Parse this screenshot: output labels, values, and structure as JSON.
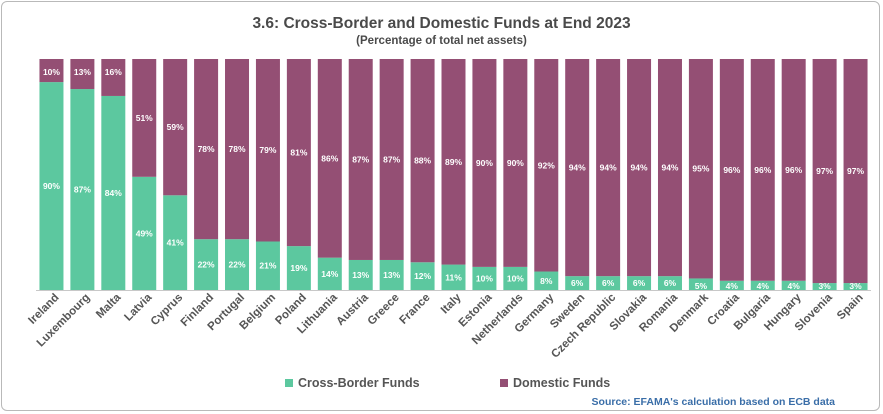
{
  "chart_data": {
    "type": "bar",
    "stacked": true,
    "title": "3.6: Cross-Border and Domestic Funds at End 2023",
    "subtitle": "(Percentage of total net assets)",
    "categories": [
      "Ireland",
      "Luxembourg",
      "Malta",
      "Latvia",
      "Cyprus",
      "Finland",
      "Portugal",
      "Belgium",
      "Poland",
      "Lithuania",
      "Austria",
      "Greece",
      "France",
      "Italy",
      "Estonia",
      "Netherlands",
      "Germany",
      "Sweden",
      "Czech Republic",
      "Slovakia",
      "Romania",
      "Denmark",
      "Croatia",
      "Bulgaria",
      "Hungary",
      "Slovenia",
      "Spain"
    ],
    "series": [
      {
        "name": "Cross-Border Funds",
        "color": "#5cc89f",
        "values": [
          90,
          87,
          84,
          49,
          41,
          22,
          22,
          21,
          19,
          14,
          13,
          13,
          12,
          11,
          10,
          10,
          8,
          6,
          6,
          6,
          6,
          5,
          4,
          4,
          4,
          3,
          3
        ]
      },
      {
        "name": "Domestic Funds",
        "color": "#944f74",
        "values": [
          10,
          13,
          16,
          51,
          59,
          78,
          78,
          79,
          81,
          86,
          87,
          87,
          88,
          89,
          90,
          90,
          92,
          94,
          94,
          94,
          94,
          95,
          96,
          96,
          96,
          97,
          97
        ]
      }
    ],
    "ylim": [
      0,
      100
    ],
    "legend_position": "bottom",
    "data_labels": "percent"
  },
  "source": "Source: EFAMA's calculation based on ECB data"
}
